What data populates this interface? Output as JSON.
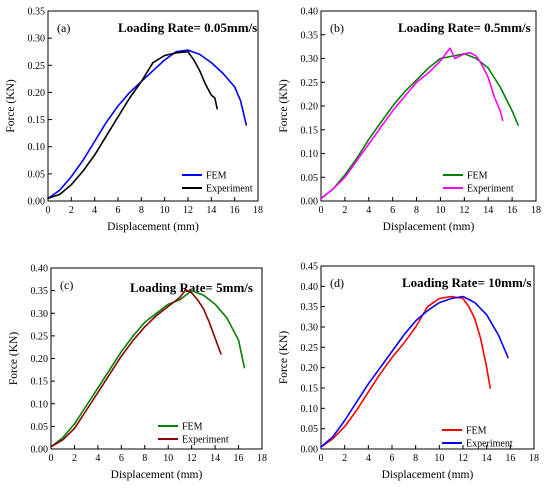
{
  "chart_data": [
    {
      "type": "line",
      "panel_label": "(a)",
      "title": "Loading Rate= 0.05mm/s",
      "xlabel": "Displacement (mm)",
      "ylabel": "Force (KN)",
      "xlim": [
        0,
        18
      ],
      "ylim": [
        0,
        0.35
      ],
      "xticks": [
        "0",
        "2",
        "4",
        "6",
        "8",
        "10",
        "12",
        "14",
        "16",
        "18"
      ],
      "yticks": [
        "0.00",
        "0.05",
        "0.10",
        "0.15",
        "0.20",
        "0.25",
        "0.30",
        "0.35"
      ],
      "legend_position": "bottom-right",
      "grid": false,
      "series": [
        {
          "name": "FEM",
          "color": "#0000ff",
          "points": [
            [
              0,
              0.005
            ],
            [
              0.5,
              0.012
            ],
            [
              1,
              0.02
            ],
            [
              2,
              0.045
            ],
            [
              3,
              0.075
            ],
            [
              4,
              0.11
            ],
            [
              5,
              0.145
            ],
            [
              6,
              0.175
            ],
            [
              7,
              0.2
            ],
            [
              8,
              0.22
            ],
            [
              9,
              0.24
            ],
            [
              10,
              0.26
            ],
            [
              11,
              0.275
            ],
            [
              12,
              0.278
            ],
            [
              13,
              0.27
            ],
            [
              14,
              0.255
            ],
            [
              15,
              0.235
            ],
            [
              16,
              0.21
            ],
            [
              16.5,
              0.185
            ],
            [
              17,
              0.14
            ]
          ]
        },
        {
          "name": "Experiment",
          "color": "#000000",
          "points": [
            [
              0,
              0.005
            ],
            [
              1,
              0.012
            ],
            [
              2,
              0.03
            ],
            [
              3,
              0.055
            ],
            [
              4,
              0.085
            ],
            [
              5,
              0.12
            ],
            [
              6,
              0.155
            ],
            [
              7,
              0.19
            ],
            [
              8,
              0.22
            ],
            [
              9,
              0.255
            ],
            [
              10,
              0.268
            ],
            [
              11,
              0.273
            ],
            [
              12,
              0.275
            ],
            [
              12.5,
              0.26
            ],
            [
              13,
              0.24
            ],
            [
              13.5,
              0.215
            ],
            [
              14,
              0.195
            ],
            [
              14.3,
              0.19
            ],
            [
              14.5,
              0.17
            ]
          ]
        }
      ]
    },
    {
      "type": "line",
      "panel_label": "(b)",
      "title": "Loading Rate= 0.5mm/s",
      "xlabel": "Displacement (mm)",
      "ylabel": "Force (KN)",
      "xlim": [
        0,
        18
      ],
      "ylim": [
        0,
        0.4
      ],
      "xticks": [
        "0",
        "2",
        "4",
        "6",
        "8",
        "10",
        "12",
        "14",
        "16",
        "18"
      ],
      "yticks": [
        "0.00",
        "0.05",
        "0.10",
        "0.15",
        "0.20",
        "0.25",
        "0.30",
        "0.35",
        "0.40"
      ],
      "legend_position": "bottom-right",
      "grid": false,
      "series": [
        {
          "name": "FEM",
          "color": "#008000",
          "points": [
            [
              0,
              0.005
            ],
            [
              1,
              0.025
            ],
            [
              2,
              0.055
            ],
            [
              3,
              0.09
            ],
            [
              4,
              0.13
            ],
            [
              5,
              0.165
            ],
            [
              6,
              0.2
            ],
            [
              7,
              0.23
            ],
            [
              8,
              0.255
            ],
            [
              9,
              0.28
            ],
            [
              10,
              0.3
            ],
            [
              11,
              0.305
            ],
            [
              12,
              0.31
            ],
            [
              13,
              0.3
            ],
            [
              14,
              0.28
            ],
            [
              15,
              0.24
            ],
            [
              16,
              0.19
            ],
            [
              16.5,
              0.16
            ]
          ]
        },
        {
          "name": "Experiment",
          "color": "#ff00ff",
          "points": [
            [
              0,
              0.005
            ],
            [
              1,
              0.025
            ],
            [
              2,
              0.05
            ],
            [
              3,
              0.085
            ],
            [
              4,
              0.12
            ],
            [
              5,
              0.155
            ],
            [
              6,
              0.19
            ],
            [
              7,
              0.22
            ],
            [
              8,
              0.25
            ],
            [
              9,
              0.27
            ],
            [
              10,
              0.295
            ],
            [
              10.8,
              0.322
            ],
            [
              11.2,
              0.3
            ],
            [
              12,
              0.31
            ],
            [
              12.5,
              0.312
            ],
            [
              13,
              0.305
            ],
            [
              13.5,
              0.285
            ],
            [
              14,
              0.26
            ],
            [
              14.5,
              0.22
            ],
            [
              15,
              0.19
            ],
            [
              15.2,
              0.17
            ]
          ]
        }
      ]
    },
    {
      "type": "line",
      "panel_label": "(c)",
      "title": "Loading Rate= 5mm/s",
      "xlabel": "Displacement (mm)",
      "ylabel": "Force (KN)",
      "xlim": [
        0,
        18
      ],
      "ylim": [
        0,
        0.4
      ],
      "xticks": [
        "0",
        "2",
        "4",
        "6",
        "8",
        "10",
        "12",
        "14",
        "16",
        "18"
      ],
      "yticks": [
        "0.00",
        "0.05",
        "0.10",
        "0.15",
        "0.20",
        "0.25",
        "0.30",
        "0.35",
        "0.40"
      ],
      "legend_position": "bottom-right",
      "grid": false,
      "series": [
        {
          "name": "FEM",
          "color": "#008000",
          "points": [
            [
              0,
              0.005
            ],
            [
              1,
              0.025
            ],
            [
              2,
              0.055
            ],
            [
              3,
              0.095
            ],
            [
              4,
              0.135
            ],
            [
              5,
              0.175
            ],
            [
              6,
              0.215
            ],
            [
              7,
              0.25
            ],
            [
              8,
              0.28
            ],
            [
              9,
              0.3
            ],
            [
              10,
              0.32
            ],
            [
              11,
              0.33
            ],
            [
              12,
              0.35
            ],
            [
              13,
              0.34
            ],
            [
              14,
              0.32
            ],
            [
              15,
              0.29
            ],
            [
              16,
              0.24
            ],
            [
              16.5,
              0.18
            ]
          ]
        },
        {
          "name": "Experiment",
          "color": "#8b0000",
          "points": [
            [
              0,
              0.005
            ],
            [
              1,
              0.02
            ],
            [
              2,
              0.045
            ],
            [
              3,
              0.085
            ],
            [
              4,
              0.125
            ],
            [
              5,
              0.165
            ],
            [
              6,
              0.205
            ],
            [
              7,
              0.24
            ],
            [
              8,
              0.27
            ],
            [
              9,
              0.295
            ],
            [
              10,
              0.315
            ],
            [
              11,
              0.335
            ],
            [
              11.5,
              0.352
            ],
            [
              12,
              0.345
            ],
            [
              12.5,
              0.33
            ],
            [
              13,
              0.31
            ],
            [
              13.5,
              0.28
            ],
            [
              14,
              0.245
            ],
            [
              14.5,
              0.21
            ]
          ]
        }
      ]
    },
    {
      "type": "line",
      "panel_label": "(d)",
      "title": "Loading Rate= 10mm/s",
      "xlabel": "Displacement (mm)",
      "ylabel": "Force (KN)",
      "xlim": [
        0,
        18
      ],
      "ylim": [
        0,
        0.45
      ],
      "xticks": [
        "0",
        "2",
        "4",
        "6",
        "8",
        "10",
        "12",
        "14",
        "16",
        "18"
      ],
      "yticks": [
        "0.00",
        "0.05",
        "0.10",
        "0.15",
        "0.20",
        "0.25",
        "0.30",
        "0.35",
        "0.40",
        "0.45"
      ],
      "legend_position": "bottom-right",
      "grid": false,
      "series": [
        {
          "name": "FEM",
          "color": "#ff0000",
          "points": [
            [
              0,
              0.005
            ],
            [
              1,
              0.025
            ],
            [
              2,
              0.055
            ],
            [
              3,
              0.095
            ],
            [
              4,
              0.14
            ],
            [
              5,
              0.185
            ],
            [
              6,
              0.225
            ],
            [
              7,
              0.26
            ],
            [
              8,
              0.3
            ],
            [
              9,
              0.35
            ],
            [
              10,
              0.37
            ],
            [
              11,
              0.375
            ],
            [
              12,
              0.37
            ],
            [
              12.5,
              0.35
            ],
            [
              13,
              0.32
            ],
            [
              13.5,
              0.27
            ],
            [
              14,
              0.2
            ],
            [
              14.3,
              0.15
            ]
          ]
        },
        {
          "name": "Experiment",
          "color": "#0000ff",
          "points": [
            [
              0,
              0.005
            ],
            [
              1,
              0.03
            ],
            [
              2,
              0.07
            ],
            [
              3,
              0.115
            ],
            [
              4,
              0.16
            ],
            [
              5,
              0.2
            ],
            [
              6,
              0.24
            ],
            [
              7,
              0.28
            ],
            [
              8,
              0.315
            ],
            [
              9,
              0.34
            ],
            [
              10,
              0.36
            ],
            [
              11,
              0.37
            ],
            [
              12,
              0.375
            ],
            [
              13,
              0.36
            ],
            [
              14,
              0.33
            ],
            [
              15,
              0.28
            ],
            [
              15.8,
              0.225
            ]
          ]
        }
      ]
    }
  ]
}
